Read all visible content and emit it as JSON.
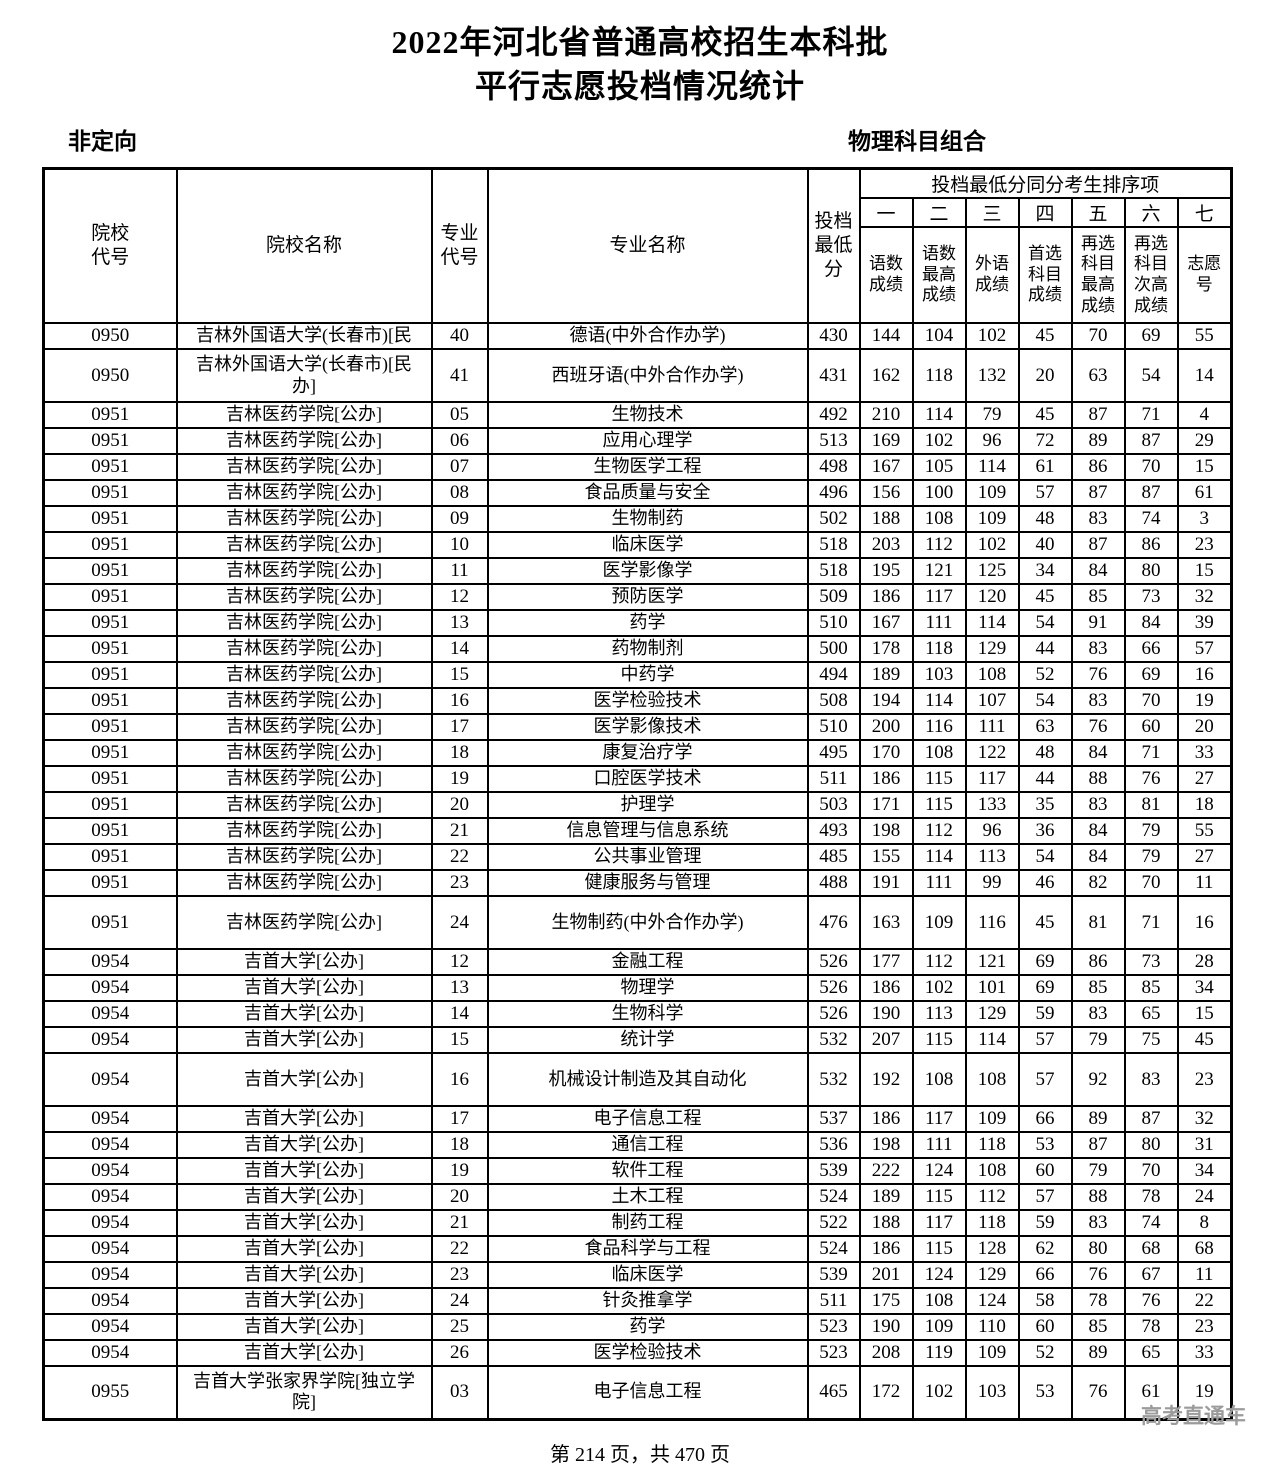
{
  "title": {
    "line1": "2022年河北省普通高校招生本科批",
    "line2": "平行志愿投档情况统计"
  },
  "section": {
    "left_label": "非定向",
    "right_label": "物理科目组合"
  },
  "table": {
    "main_headers": [
      "院校\n代号",
      "院校名称",
      "专业\n代号",
      "专业名称",
      "投档\n最低\n分"
    ],
    "sort_group_title": "投档最低分同分考生排序项",
    "sort_numerals": [
      "一",
      "二",
      "三",
      "四",
      "五",
      "六",
      "七"
    ],
    "sort_sublabels": [
      "语数\n成绩",
      "语数\n最高\n成绩",
      "外语\n成绩",
      "首选\n科目\n成绩",
      "再选\n科目\n最高\n成绩",
      "再选\n科目\n次高\n成绩",
      "志愿\n号"
    ],
    "rows": [
      {
        "code": "0950",
        "school": "吉林外国语大学(长春市)[民",
        "major_code": "40",
        "major": "德语(中外合作办学)",
        "values": [
          430,
          144,
          104,
          102,
          45,
          70,
          69,
          55
        ],
        "tall": false
      },
      {
        "code": "0950",
        "school": "吉林外国语大学(长春市)[民\n办]",
        "major_code": "41",
        "major": "西班牙语(中外合作办学)",
        "values": [
          431,
          162,
          118,
          132,
          20,
          63,
          54,
          14
        ],
        "tall": true
      },
      {
        "code": "0951",
        "school": "吉林医药学院[公办]",
        "major_code": "05",
        "major": "生物技术",
        "values": [
          492,
          210,
          114,
          79,
          45,
          87,
          71,
          4
        ],
        "tall": false
      },
      {
        "code": "0951",
        "school": "吉林医药学院[公办]",
        "major_code": "06",
        "major": "应用心理学",
        "values": [
          513,
          169,
          102,
          96,
          72,
          89,
          87,
          29
        ],
        "tall": false
      },
      {
        "code": "0951",
        "school": "吉林医药学院[公办]",
        "major_code": "07",
        "major": "生物医学工程",
        "values": [
          498,
          167,
          105,
          114,
          61,
          86,
          70,
          15
        ],
        "tall": false
      },
      {
        "code": "0951",
        "school": "吉林医药学院[公办]",
        "major_code": "08",
        "major": "食品质量与安全",
        "values": [
          496,
          156,
          100,
          109,
          57,
          87,
          87,
          61
        ],
        "tall": false
      },
      {
        "code": "0951",
        "school": "吉林医药学院[公办]",
        "major_code": "09",
        "major": "生物制药",
        "values": [
          502,
          188,
          108,
          109,
          48,
          83,
          74,
          3
        ],
        "tall": false
      },
      {
        "code": "0951",
        "school": "吉林医药学院[公办]",
        "major_code": "10",
        "major": "临床医学",
        "values": [
          518,
          203,
          112,
          102,
          40,
          87,
          86,
          23
        ],
        "tall": false
      },
      {
        "code": "0951",
        "school": "吉林医药学院[公办]",
        "major_code": "11",
        "major": "医学影像学",
        "values": [
          518,
          195,
          121,
          125,
          34,
          84,
          80,
          15
        ],
        "tall": false
      },
      {
        "code": "0951",
        "school": "吉林医药学院[公办]",
        "major_code": "12",
        "major": "预防医学",
        "values": [
          509,
          186,
          117,
          120,
          45,
          85,
          73,
          32
        ],
        "tall": false
      },
      {
        "code": "0951",
        "school": "吉林医药学院[公办]",
        "major_code": "13",
        "major": "药学",
        "values": [
          510,
          167,
          111,
          114,
          54,
          91,
          84,
          39
        ],
        "tall": false
      },
      {
        "code": "0951",
        "school": "吉林医药学院[公办]",
        "major_code": "14",
        "major": "药物制剂",
        "values": [
          500,
          178,
          118,
          129,
          44,
          83,
          66,
          57
        ],
        "tall": false
      },
      {
        "code": "0951",
        "school": "吉林医药学院[公办]",
        "major_code": "15",
        "major": "中药学",
        "values": [
          494,
          189,
          103,
          108,
          52,
          76,
          69,
          16
        ],
        "tall": false
      },
      {
        "code": "0951",
        "school": "吉林医药学院[公办]",
        "major_code": "16",
        "major": "医学检验技术",
        "values": [
          508,
          194,
          114,
          107,
          54,
          83,
          70,
          19
        ],
        "tall": false
      },
      {
        "code": "0951",
        "school": "吉林医药学院[公办]",
        "major_code": "17",
        "major": "医学影像技术",
        "values": [
          510,
          200,
          116,
          111,
          63,
          76,
          60,
          20
        ],
        "tall": false
      },
      {
        "code": "0951",
        "school": "吉林医药学院[公办]",
        "major_code": "18",
        "major": "康复治疗学",
        "values": [
          495,
          170,
          108,
          122,
          48,
          84,
          71,
          33
        ],
        "tall": false
      },
      {
        "code": "0951",
        "school": "吉林医药学院[公办]",
        "major_code": "19",
        "major": "口腔医学技术",
        "values": [
          511,
          186,
          115,
          117,
          44,
          88,
          76,
          27
        ],
        "tall": false
      },
      {
        "code": "0951",
        "school": "吉林医药学院[公办]",
        "major_code": "20",
        "major": "护理学",
        "values": [
          503,
          171,
          115,
          133,
          35,
          83,
          81,
          18
        ],
        "tall": false
      },
      {
        "code": "0951",
        "school": "吉林医药学院[公办]",
        "major_code": "21",
        "major": "信息管理与信息系统",
        "values": [
          493,
          198,
          112,
          96,
          36,
          84,
          79,
          55
        ],
        "tall": false
      },
      {
        "code": "0951",
        "school": "吉林医药学院[公办]",
        "major_code": "22",
        "major": "公共事业管理",
        "values": [
          485,
          155,
          114,
          113,
          54,
          84,
          79,
          27
        ],
        "tall": false
      },
      {
        "code": "0951",
        "school": "吉林医药学院[公办]",
        "major_code": "23",
        "major": "健康服务与管理",
        "values": [
          488,
          191,
          111,
          99,
          46,
          82,
          70,
          11
        ],
        "tall": false
      },
      {
        "code": "0951",
        "school": "吉林医药学院[公办]",
        "major_code": "24",
        "major": "生物制药(中外合作办学)",
        "values": [
          476,
          163,
          109,
          116,
          45,
          81,
          71,
          16
        ],
        "tall": true
      },
      {
        "code": "0954",
        "school": "吉首大学[公办]",
        "major_code": "12",
        "major": "金融工程",
        "values": [
          526,
          177,
          112,
          121,
          69,
          86,
          73,
          28
        ],
        "tall": false
      },
      {
        "code": "0954",
        "school": "吉首大学[公办]",
        "major_code": "13",
        "major": "物理学",
        "values": [
          526,
          186,
          102,
          101,
          69,
          85,
          85,
          34
        ],
        "tall": false
      },
      {
        "code": "0954",
        "school": "吉首大学[公办]",
        "major_code": "14",
        "major": "生物科学",
        "values": [
          526,
          190,
          113,
          129,
          59,
          83,
          65,
          15
        ],
        "tall": false
      },
      {
        "code": "0954",
        "school": "吉首大学[公办]",
        "major_code": "15",
        "major": "统计学",
        "values": [
          532,
          207,
          115,
          114,
          57,
          79,
          75,
          45
        ],
        "tall": false
      },
      {
        "code": "0954",
        "school": "吉首大学[公办]",
        "major_code": "16",
        "major": "机械设计制造及其自动化",
        "values": [
          532,
          192,
          108,
          108,
          57,
          92,
          83,
          23
        ],
        "tall": true
      },
      {
        "code": "0954",
        "school": "吉首大学[公办]",
        "major_code": "17",
        "major": "电子信息工程",
        "values": [
          537,
          186,
          117,
          109,
          66,
          89,
          87,
          32
        ],
        "tall": false
      },
      {
        "code": "0954",
        "school": "吉首大学[公办]",
        "major_code": "18",
        "major": "通信工程",
        "values": [
          536,
          198,
          111,
          118,
          53,
          87,
          80,
          31
        ],
        "tall": false
      },
      {
        "code": "0954",
        "school": "吉首大学[公办]",
        "major_code": "19",
        "major": "软件工程",
        "values": [
          539,
          222,
          124,
          108,
          60,
          79,
          70,
          34
        ],
        "tall": false
      },
      {
        "code": "0954",
        "school": "吉首大学[公办]",
        "major_code": "20",
        "major": "土木工程",
        "values": [
          524,
          189,
          115,
          112,
          57,
          88,
          78,
          24
        ],
        "tall": false
      },
      {
        "code": "0954",
        "school": "吉首大学[公办]",
        "major_code": "21",
        "major": "制药工程",
        "values": [
          522,
          188,
          117,
          118,
          59,
          83,
          74,
          8
        ],
        "tall": false
      },
      {
        "code": "0954",
        "school": "吉首大学[公办]",
        "major_code": "22",
        "major": "食品科学与工程",
        "values": [
          524,
          186,
          115,
          128,
          62,
          80,
          68,
          68
        ],
        "tall": false
      },
      {
        "code": "0954",
        "school": "吉首大学[公办]",
        "major_code": "23",
        "major": "临床医学",
        "values": [
          539,
          201,
          124,
          129,
          66,
          76,
          67,
          11
        ],
        "tall": false
      },
      {
        "code": "0954",
        "school": "吉首大学[公办]",
        "major_code": "24",
        "major": "针灸推拿学",
        "values": [
          511,
          175,
          108,
          124,
          58,
          78,
          76,
          22
        ],
        "tall": false
      },
      {
        "code": "0954",
        "school": "吉首大学[公办]",
        "major_code": "25",
        "major": "药学",
        "values": [
          523,
          190,
          109,
          110,
          60,
          85,
          78,
          23
        ],
        "tall": false
      },
      {
        "code": "0954",
        "school": "吉首大学[公办]",
        "major_code": "26",
        "major": "医学检验技术",
        "values": [
          523,
          208,
          119,
          109,
          52,
          89,
          65,
          33
        ],
        "tall": false
      },
      {
        "code": "0955",
        "school": "吉首大学张家界学院[独立学\n院]",
        "major_code": "03",
        "major": "电子信息工程",
        "values": [
          465,
          172,
          102,
          103,
          53,
          76,
          61,
          19
        ],
        "tall": true
      }
    ]
  },
  "footer": {
    "page_info": "第 214 页，共 470 页",
    "watermark": "高考直通车"
  }
}
